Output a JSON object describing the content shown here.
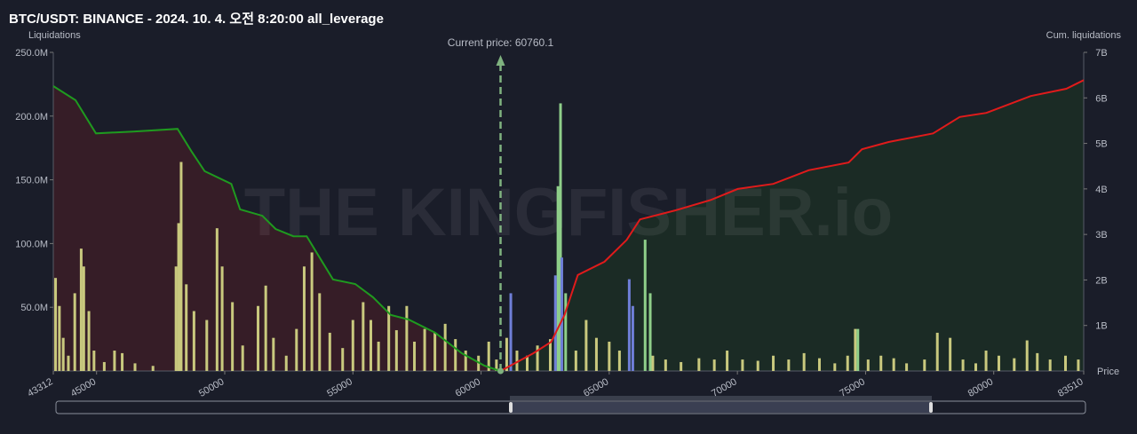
{
  "chart_data": {
    "type": "bar",
    "title": "BTC/USDT: BINANCE - 2024. 10. 4. 오전 8:20:00 all_leverage",
    "y_label": "Liquidations",
    "y2_label": "Cum. liquidations",
    "x_label": "Price",
    "annotation": "Current price: 60760.1",
    "current_price": 60760.1,
    "current_price_color": "#7fb27f",
    "watermark": "THE KINGFISHER.io",
    "xlim": [
      43312,
      83510
    ],
    "xticks": [
      43312,
      45000,
      50000,
      55000,
      60000,
      65000,
      70000,
      75000,
      80000,
      83510
    ],
    "ylim": [
      0,
      250
    ],
    "yticks": [
      {
        "value": 50,
        "label": "50.0M"
      },
      {
        "value": 100,
        "label": "100.0M"
      },
      {
        "value": 150,
        "label": "150.0M"
      },
      {
        "value": 200,
        "label": "200.0M"
      },
      {
        "value": 250,
        "label": "250.0M"
      }
    ],
    "y2lim": [
      0,
      7
    ],
    "y2ticks": [
      {
        "value": 1,
        "label": "1B"
      },
      {
        "value": 2,
        "label": "2B"
      },
      {
        "value": 3,
        "label": "3B"
      },
      {
        "value": 4,
        "label": "4B"
      },
      {
        "value": 5,
        "label": "5B"
      },
      {
        "value": 6,
        "label": "6B"
      },
      {
        "value": 7,
        "label": "7B"
      }
    ],
    "series": [
      {
        "type": "bar",
        "axis": "y",
        "color": "#c9c97e",
        "x": [
          43400,
          43550,
          43700,
          43900,
          44150,
          44400,
          44500,
          44700,
          44900,
          45300,
          45700,
          46000,
          46500,
          47200,
          48100,
          48200,
          48300,
          48500,
          48800,
          49300,
          49700,
          49900,
          50300,
          50700,
          51300,
          51600,
          51900,
          52400,
          52800,
          53100,
          53400,
          53700,
          54100,
          54600,
          55000,
          55400,
          55700,
          56000,
          56400,
          56700,
          57100,
          57400,
          57800,
          58200,
          58600,
          59000,
          59400,
          59900,
          60300,
          60600,
          61000,
          61400,
          61800,
          62200,
          62700,
          63700,
          64100,
          64500,
          65000,
          65400,
          66700,
          67200,
          67800,
          68500,
          69100,
          69600,
          70200,
          70800,
          71400,
          72000,
          72600,
          73200,
          73800,
          74300,
          74600,
          75100,
          75600,
          76100,
          76600,
          77300,
          77800,
          78300,
          78800,
          79300,
          79700,
          80200,
          80800,
          81300,
          81700,
          82200,
          82800,
          83300
        ],
        "values": [
          73,
          51,
          26,
          12,
          61,
          96,
          82,
          47,
          16,
          7,
          16,
          14,
          6,
          4,
          82,
          116,
          164,
          68,
          47,
          40,
          112,
          82,
          54,
          20,
          51,
          67,
          26,
          12,
          33,
          82,
          93,
          61,
          30,
          18,
          40,
          54,
          40,
          23,
          51,
          32,
          51,
          23,
          33,
          30,
          37,
          25,
          16,
          12,
          23,
          9,
          26,
          16,
          12,
          20,
          25,
          16,
          40,
          26,
          23,
          16,
          12,
          9,
          7,
          10,
          9,
          16,
          9,
          8,
          12,
          9,
          14,
          10,
          6,
          12,
          33,
          9,
          12,
          10,
          6,
          9,
          30,
          26,
          9,
          6,
          16,
          12,
          10,
          24,
          14,
          9,
          12,
          9
        ]
      },
      {
        "type": "bar",
        "axis": "y",
        "color": "#8fcf8a",
        "x": [
          63000,
          63100,
          63300,
          66400,
          66600,
          74700
        ],
        "values": [
          145,
          210,
          61,
          103,
          61,
          33
        ]
      },
      {
        "type": "bar",
        "axis": "y",
        "color": "#6f7fd8",
        "x": [
          61160,
          62900,
          63150,
          65780,
          65920
        ],
        "values": [
          61,
          75,
          89,
          72,
          51
        ]
      },
      {
        "type": "line",
        "axis": "y2",
        "color": "#1f9a1f",
        "area_color": "#3a1e27",
        "x": [
          43312,
          44178,
          44975,
          46430,
          48160,
          48696,
          49216,
          50256,
          50600,
          51465,
          51985,
          52678,
          53200,
          53706,
          54226,
          55092,
          55785,
          56478,
          57171,
          58210,
          59250,
          60116,
          60740
        ],
        "values": [
          6.26,
          5.95,
          5.22,
          5.26,
          5.32,
          4.83,
          4.39,
          4.11,
          3.55,
          3.41,
          3.12,
          2.96,
          2.96,
          2.49,
          2.01,
          1.91,
          1.62,
          1.23,
          1.13,
          0.84,
          0.39,
          0.12,
          0
        ]
      },
      {
        "type": "line",
        "axis": "y2",
        "color": "#e01b1b",
        "area_color": "#1c2e25",
        "x": [
          60760,
          62042,
          62735,
          63255,
          63775,
          64814,
          65680,
          66200,
          67586,
          68972,
          70011,
          71397,
          72783,
          74342,
          74862,
          75901,
          77634,
          78673,
          79713,
          81445,
          82831,
          83510
        ],
        "values": [
          0,
          0.39,
          0.64,
          1.23,
          2.11,
          2.4,
          2.88,
          3.33,
          3.53,
          3.76,
          4.0,
          4.11,
          4.41,
          4.58,
          4.87,
          5.03,
          5.22,
          5.58,
          5.67,
          6.04,
          6.2,
          6.39
        ]
      }
    ]
  }
}
